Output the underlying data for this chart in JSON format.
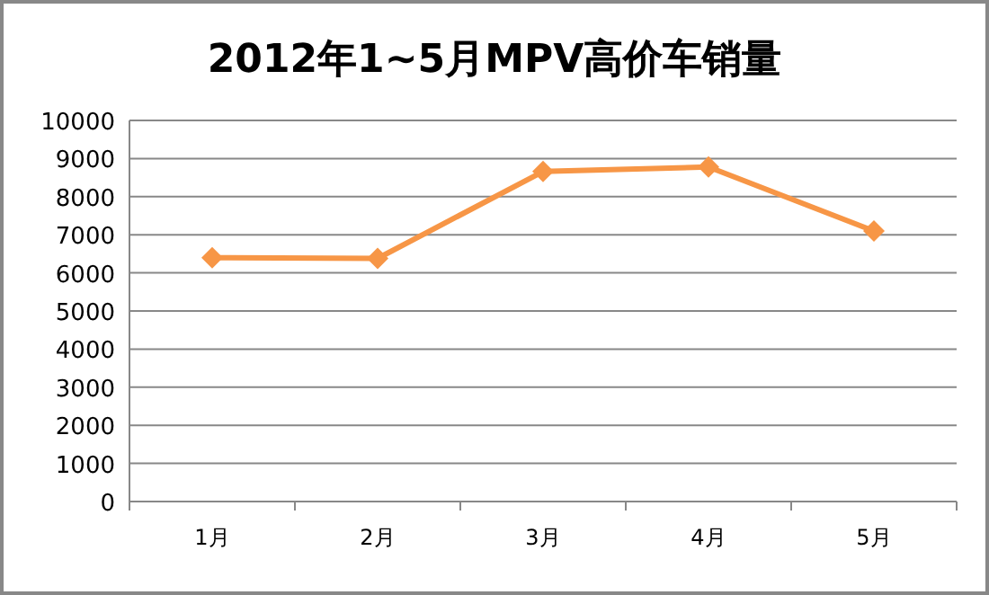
{
  "chart_data": {
    "type": "line",
    "title": "2012年1~5月MPV高价车销量",
    "categories": [
      "1月",
      "2月",
      "3月",
      "4月",
      "5月"
    ],
    "series": [
      {
        "color": "#f79646",
        "values": [
          6400,
          6380,
          8660,
          8780,
          7100
        ]
      }
    ],
    "ylim": [
      0,
      10000
    ],
    "yticks": [
      0,
      1000,
      2000,
      3000,
      4000,
      5000,
      6000,
      7000,
      8000,
      9000,
      10000
    ],
    "grid": "y",
    "marker": "diamond",
    "line_style": "solid"
  }
}
